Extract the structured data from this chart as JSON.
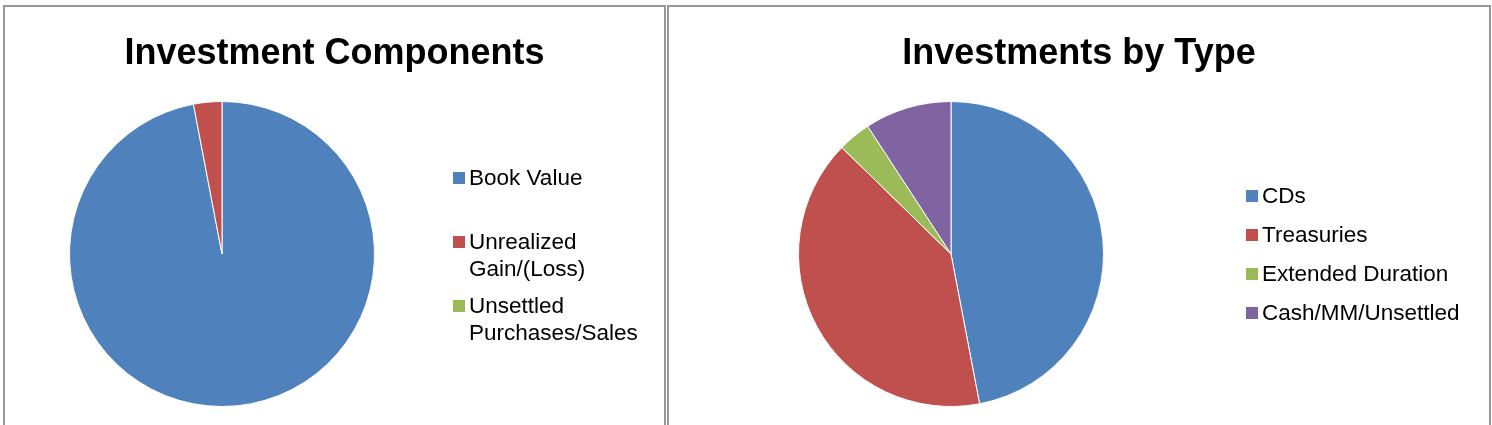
{
  "chart_data": [
    {
      "type": "pie",
      "title": "Investment Components",
      "categories": [
        "Book Value",
        "Unrealized Gain/(Loss)",
        "Unsettled Purchases/Sales"
      ],
      "values": [
        97,
        3,
        0
      ],
      "colors": [
        "#4f81bd",
        "#c0504d",
        "#9bbb59"
      ],
      "legend": "right"
    },
    {
      "type": "pie",
      "title": "Investments by Type",
      "categories": [
        "CDs",
        "Treasuries",
        "Extended Duration",
        "Cash/MM/Unsettled"
      ],
      "values": [
        47,
        40.3,
        3.5,
        9.2
      ],
      "colors": [
        "#4f81bd",
        "#c0504d",
        "#9bbb59",
        "#8064a2"
      ],
      "legend": "right"
    }
  ]
}
